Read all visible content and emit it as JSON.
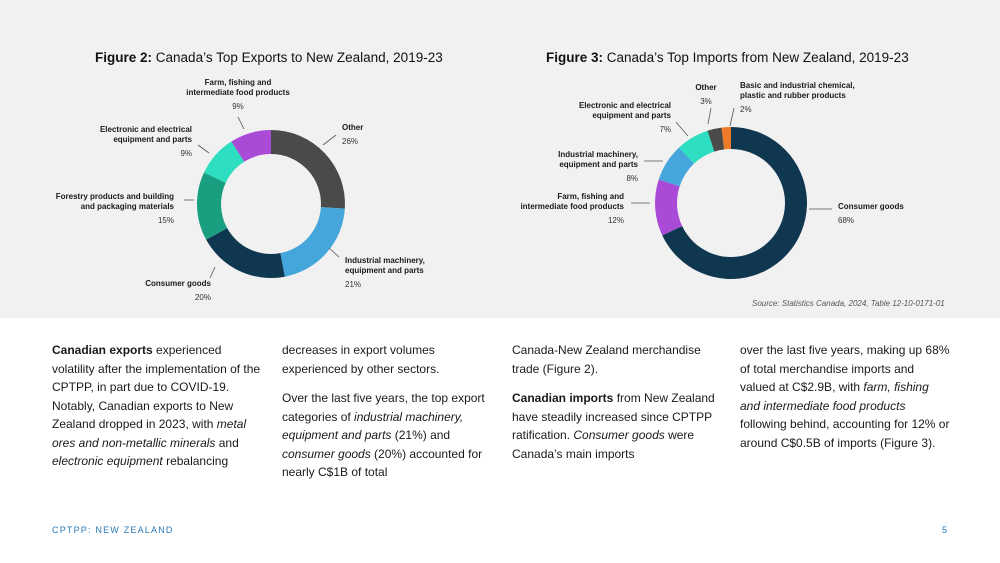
{
  "colors": {
    "charcoal": "#4a4a4a",
    "blue": "#45a6dc",
    "navy": "#0f3850",
    "green": "#1a9e80",
    "teal": "#2ddec0",
    "purple": "#a94bd6",
    "orange": "#ee7a2a"
  },
  "fig2": {
    "prefix": "Figure 2:",
    "title": "Canada’s Top Exports to New Zealand, 2019-23"
  },
  "fig3": {
    "prefix": "Figure 3:",
    "title": "Canada’s Top Imports from New Zealand, 2019-23"
  },
  "chart_data": [
    {
      "type": "pie",
      "donut": true,
      "title": "Canada’s Top Exports to New Zealand, 2019-23",
      "slices": [
        {
          "label": [
            "Other"
          ],
          "value": 26,
          "pct": "26%",
          "color": "#4a4a4a"
        },
        {
          "label": [
            "Industrial machinery,",
            "equipment and parts"
          ],
          "value": 21,
          "pct": "21%",
          "color": "#45a6dc"
        },
        {
          "label": [
            "Consumer goods"
          ],
          "value": 20,
          "pct": "20%",
          "color": "#0f3850"
        },
        {
          "label": [
            "Forestry products and building",
            "and packaging materials"
          ],
          "value": 15,
          "pct": "15%",
          "color": "#1a9e80"
        },
        {
          "label": [
            "Electronic and electrical",
            "equipment and parts"
          ],
          "value": 9,
          "pct": "9%",
          "color": "#2ddec0"
        },
        {
          "label": [
            "Farm, fishing and",
            "intermediate food products"
          ],
          "value": 9,
          "pct": "9%",
          "color": "#a94bd6"
        }
      ]
    },
    {
      "type": "pie",
      "donut": true,
      "title": "Canada’s Top Imports from New Zealand, 2019-23",
      "slices": [
        {
          "label": [
            "Consumer goods"
          ],
          "value": 68,
          "pct": "68%",
          "color": "#0f3850"
        },
        {
          "label": [
            "Farm, fishing and",
            "intermediate food products"
          ],
          "value": 12,
          "pct": "12%",
          "color": "#a94bd6"
        },
        {
          "label": [
            "Industrial machinery,",
            "equipment and parts"
          ],
          "value": 8,
          "pct": "8%",
          "color": "#45a6dc"
        },
        {
          "label": [
            "Electronic and electrical",
            "equipment and parts"
          ],
          "value": 7,
          "pct": "7%",
          "color": "#2ddec0"
        },
        {
          "label": [
            "Other"
          ],
          "value": 3,
          "pct": "3%",
          "color": "#4a4a4a"
        },
        {
          "label": [
            "Basic and industrial chemical,",
            "plastic and rubber products"
          ],
          "value": 2,
          "pct": "2%",
          "color": "#ee7a2a"
        }
      ]
    }
  ],
  "source": "Source: Statistics Canada, 2024, Table 12-10-0171-01",
  "body": {
    "col1": {
      "p1_bold": "Canadian exports",
      "p1_a": " experienced volatility after the implementation of the CPTPP, in part due to COVID-19. Notably, Canadian exports to New Zealand dropped in 2023, with ",
      "p1_i1": "metal ores and non-metallic minerals",
      "p1_b": " and ",
      "p1_i2": "electronic equipment",
      "p1_c": " rebalancing"
    },
    "col2": {
      "p1": "decreases in export volumes experienced by other sectors.",
      "p2_a": "Over the last five years, the top export categories of ",
      "p2_i1": "industrial machinery, equipment and parts",
      "p2_b": " (21%) and ",
      "p2_i2": "consumer goods",
      "p2_c": " (20%) accounted for nearly C$1B of total"
    },
    "col3": {
      "p1": "Canada-New Zealand merchandise trade (Figure 2).",
      "p2_bold": "Canadian imports",
      "p2_a": " from New Zealand have steadily increased since CPTPP ratification. ",
      "p2_i": "Consumer goods",
      "p2_b": " were Canada’s main imports"
    },
    "col4": {
      "p1_a": "over the last five years, making up 68% of total merchandise imports and valued at C$2.9B, with ",
      "p1_i": "farm, fishing and intermediate food products",
      "p1_b": " following behind, accounting for 12% or around C$0.5B of imports (Figure 3)."
    }
  },
  "footer": {
    "left": "CPTPP: NEW ZEALAND",
    "page": "5"
  }
}
